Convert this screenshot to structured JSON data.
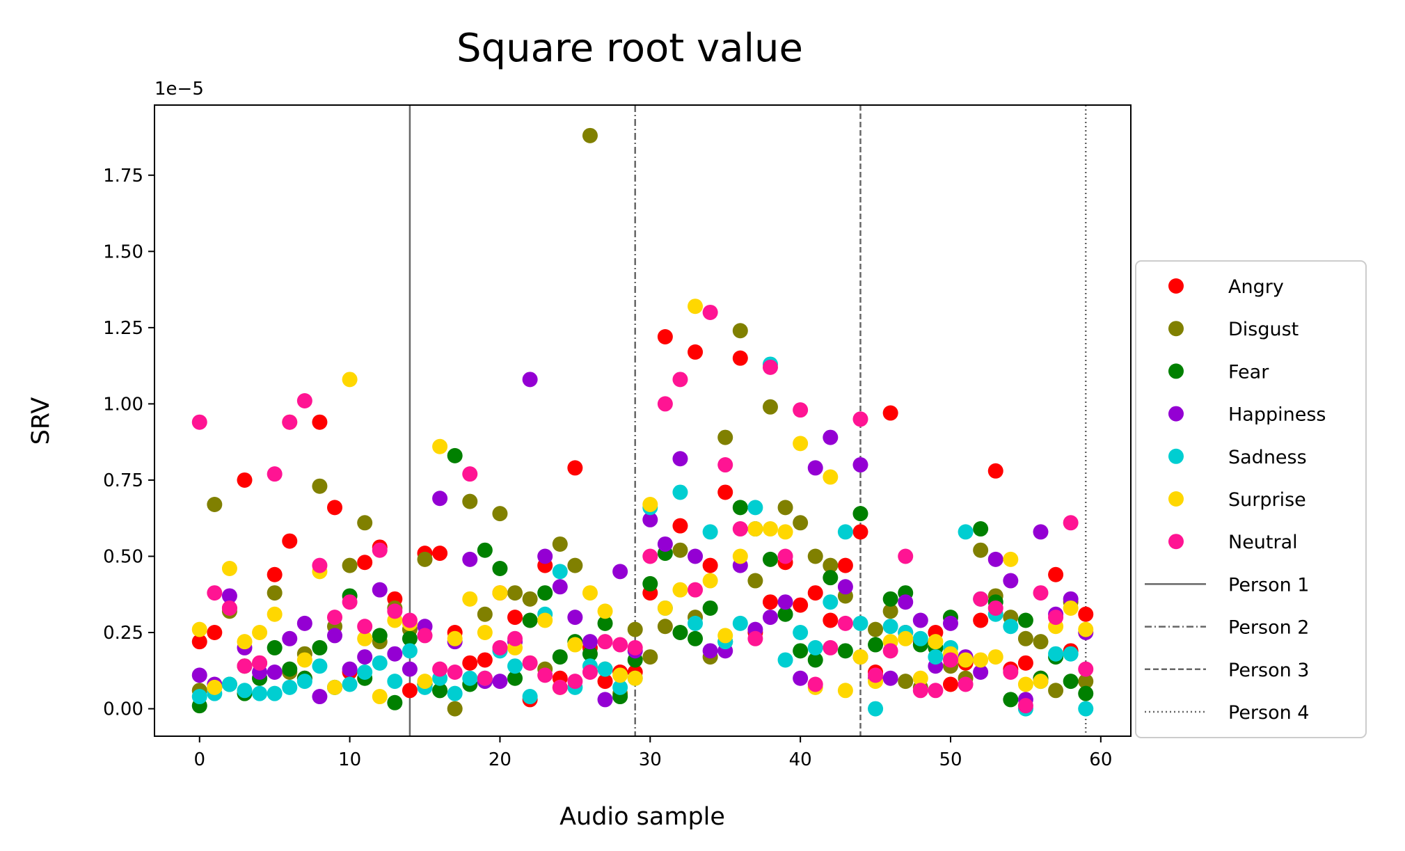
{
  "chart_data": {
    "type": "scatter",
    "title": "Square root value",
    "xlabel": "Audio sample",
    "ylabel": "SRV",
    "y_offset_label": "1e−5",
    "y_multiplier": 1e-05,
    "xlim": [
      -3,
      62
    ],
    "ylim": [
      -0.09,
      1.98
    ],
    "xticks": [
      0,
      10,
      20,
      30,
      40,
      50,
      60
    ],
    "yticks": [
      0.0,
      0.25,
      0.5,
      0.75,
      1.0,
      1.25,
      1.5,
      1.75
    ],
    "ytick_labels": [
      "0.00",
      "0.25",
      "0.50",
      "0.75",
      "1.00",
      "1.25",
      "1.50",
      "1.75"
    ],
    "grid": false,
    "legend_placement": "outside-right",
    "series": [
      {
        "name": "Angry",
        "color": "#ff0000",
        "x": [
          0,
          1,
          2,
          3,
          4,
          5,
          6,
          7,
          8,
          9,
          10,
          11,
          12,
          13,
          14,
          15,
          16,
          17,
          18,
          19,
          20,
          21,
          22,
          23,
          24,
          25,
          26,
          27,
          28,
          29,
          30,
          31,
          32,
          33,
          34,
          35,
          36,
          37,
          38,
          39,
          40,
          41,
          42,
          43,
          44,
          45,
          46,
          47,
          48,
          49,
          50,
          51,
          52,
          53,
          54,
          55,
          56,
          57,
          58,
          59
        ],
        "y": [
          0.22,
          0.25,
          0.33,
          0.75,
          0.15,
          0.44,
          0.55,
          0.1,
          0.94,
          0.66,
          0.12,
          0.48,
          0.53,
          0.36,
          0.06,
          0.51,
          0.51,
          0.25,
          0.15,
          0.16,
          0.38,
          0.3,
          0.03,
          0.47,
          0.1,
          0.79,
          0.2,
          0.09,
          0.12,
          0.12,
          0.38,
          1.22,
          0.6,
          1.17,
          0.47,
          0.71,
          1.15,
          0.25,
          0.35,
          0.48,
          0.34,
          0.38,
          0.29,
          0.47,
          0.58,
          0.12,
          0.97,
          0.25,
          0.22,
          0.25,
          0.08,
          0.15,
          0.29,
          0.78,
          0.13,
          0.15,
          0.1,
          0.44,
          0.19,
          0.31
        ]
      },
      {
        "name": "Disgust",
        "color": "#808000",
        "x": [
          0,
          1,
          2,
          3,
          4,
          5,
          6,
          7,
          8,
          9,
          10,
          11,
          12,
          13,
          14,
          15,
          16,
          17,
          18,
          19,
          20,
          21,
          22,
          23,
          24,
          25,
          26,
          27,
          28,
          29,
          30,
          31,
          32,
          33,
          34,
          35,
          36,
          37,
          38,
          39,
          40,
          41,
          42,
          43,
          44,
          45,
          46,
          47,
          48,
          49,
          50,
          51,
          52,
          53,
          54,
          55,
          56,
          57,
          58,
          59
        ],
        "y": [
          0.06,
          0.67,
          0.32,
          0.14,
          0.1,
          0.38,
          0.12,
          0.18,
          0.73,
          0.27,
          0.47,
          0.61,
          0.22,
          0.33,
          0.26,
          0.49,
          0.06,
          0.0,
          0.68,
          0.31,
          0.64,
          0.38,
          0.36,
          0.13,
          0.54,
          0.47,
          1.88,
          0.13,
          0.05,
          0.26,
          0.17,
          0.27,
          0.52,
          0.3,
          0.17,
          0.89,
          1.24,
          0.42,
          0.99,
          0.66,
          0.61,
          0.5,
          0.47,
          0.37,
          0.17,
          0.26,
          0.32,
          0.09,
          0.07,
          0.2,
          0.14,
          0.1,
          0.52,
          0.37,
          0.3,
          0.23,
          0.22,
          0.06,
          0.35,
          0.09
        ]
      },
      {
        "name": "Fear",
        "color": "#008000",
        "x": [
          0,
          1,
          2,
          3,
          4,
          5,
          6,
          7,
          8,
          9,
          10,
          11,
          12,
          13,
          14,
          15,
          16,
          17,
          18,
          19,
          20,
          21,
          22,
          23,
          24,
          25,
          26,
          27,
          28,
          29,
          30,
          31,
          32,
          33,
          34,
          35,
          36,
          37,
          38,
          39,
          40,
          41,
          42,
          43,
          44,
          45,
          46,
          47,
          48,
          49,
          50,
          51,
          52,
          53,
          54,
          55,
          56,
          57,
          58,
          59
        ],
        "y": [
          0.01,
          0.07,
          0.08,
          0.05,
          0.1,
          0.2,
          0.13,
          0.1,
          0.2,
          0.07,
          0.37,
          0.1,
          0.24,
          0.02,
          0.23,
          0.08,
          0.06,
          0.83,
          0.08,
          0.52,
          0.46,
          0.1,
          0.29,
          0.38,
          0.17,
          0.22,
          0.18,
          0.28,
          0.04,
          0.16,
          0.41,
          0.51,
          0.25,
          0.23,
          0.33,
          0.22,
          0.66,
          0.59,
          0.49,
          0.31,
          0.19,
          0.16,
          0.43,
          0.19,
          0.64,
          0.21,
          0.36,
          0.38,
          0.21,
          0.2,
          0.3,
          0.16,
          0.59,
          0.35,
          0.03,
          0.29,
          0.1,
          0.17,
          0.09,
          0.05
        ]
      },
      {
        "name": "Happiness",
        "color": "#9400d3",
        "x": [
          0,
          1,
          2,
          3,
          4,
          5,
          6,
          7,
          8,
          9,
          10,
          11,
          12,
          13,
          14,
          15,
          16,
          17,
          18,
          19,
          20,
          21,
          22,
          23,
          24,
          25,
          26,
          27,
          28,
          29,
          30,
          31,
          32,
          33,
          34,
          35,
          36,
          37,
          38,
          39,
          40,
          41,
          42,
          43,
          44,
          45,
          46,
          47,
          48,
          49,
          50,
          51,
          52,
          53,
          54,
          55,
          56,
          57,
          58,
          59
        ],
        "y": [
          0.11,
          0.08,
          0.37,
          0.2,
          0.12,
          0.12,
          0.23,
          0.28,
          0.04,
          0.24,
          0.13,
          0.17,
          0.39,
          0.18,
          0.13,
          0.27,
          0.69,
          0.22,
          0.49,
          0.09,
          0.09,
          0.22,
          1.08,
          0.5,
          0.4,
          0.3,
          0.22,
          0.03,
          0.45,
          0.19,
          0.62,
          0.54,
          0.82,
          0.5,
          0.19,
          0.19,
          0.47,
          0.26,
          0.3,
          0.35,
          0.1,
          0.79,
          0.89,
          0.4,
          0.8,
          0.1,
          0.1,
          0.35,
          0.29,
          0.14,
          0.28,
          0.17,
          0.12,
          0.49,
          0.42,
          0.03,
          0.58,
          0.31,
          0.36,
          0.25
        ]
      },
      {
        "name": "Sadness",
        "color": "#00ced1",
        "x": [
          0,
          1,
          2,
          3,
          4,
          5,
          6,
          7,
          8,
          9,
          10,
          11,
          12,
          13,
          14,
          15,
          16,
          17,
          18,
          19,
          20,
          21,
          22,
          23,
          24,
          25,
          26,
          27,
          28,
          29,
          30,
          31,
          32,
          33,
          34,
          35,
          36,
          37,
          38,
          39,
          40,
          41,
          42,
          43,
          44,
          45,
          46,
          47,
          48,
          49,
          50,
          51,
          52,
          53,
          54,
          55,
          56,
          57,
          58,
          59
        ],
        "y": [
          0.04,
          0.05,
          0.08,
          0.06,
          0.05,
          0.05,
          0.07,
          0.09,
          0.14,
          0.07,
          0.08,
          0.12,
          0.15,
          0.09,
          0.19,
          0.07,
          0.1,
          0.05,
          0.1,
          0.1,
          0.19,
          0.14,
          0.04,
          0.31,
          0.45,
          0.07,
          0.14,
          0.13,
          0.07,
          0.1,
          0.66,
          0.33,
          0.71,
          0.28,
          0.58,
          0.22,
          0.28,
          0.66,
          1.13,
          0.16,
          0.25,
          0.2,
          0.35,
          0.58,
          0.28,
          0.0,
          0.27,
          0.25,
          0.23,
          0.17,
          0.2,
          0.58,
          0.36,
          0.31,
          0.27,
          0.0,
          0.09,
          0.18,
          0.18,
          0.0
        ]
      },
      {
        "name": "Surprise",
        "color": "#ffd700",
        "x": [
          0,
          1,
          2,
          3,
          4,
          5,
          6,
          7,
          8,
          9,
          10,
          11,
          12,
          13,
          14,
          15,
          16,
          17,
          18,
          19,
          20,
          21,
          22,
          23,
          24,
          25,
          26,
          27,
          28,
          29,
          30,
          31,
          32,
          33,
          34,
          35,
          36,
          37,
          38,
          39,
          40,
          41,
          42,
          43,
          44,
          45,
          46,
          47,
          48,
          49,
          50,
          51,
          52,
          53,
          54,
          55,
          56,
          57,
          58,
          59
        ],
        "y": [
          0.26,
          0.07,
          0.46,
          0.22,
          0.25,
          0.31,
          0.94,
          0.16,
          0.45,
          0.07,
          1.08,
          0.23,
          0.04,
          0.29,
          0.28,
          0.09,
          0.86,
          0.23,
          0.36,
          0.25,
          0.38,
          0.2,
          0.15,
          0.29,
          0.07,
          0.21,
          0.38,
          0.32,
          0.11,
          0.1,
          0.67,
          0.33,
          0.39,
          1.32,
          0.42,
          0.24,
          0.5,
          0.59,
          0.59,
          0.58,
          0.87,
          0.07,
          0.76,
          0.06,
          0.17,
          0.09,
          0.22,
          0.23,
          0.1,
          0.22,
          0.18,
          0.16,
          0.16,
          0.17,
          0.49,
          0.08,
          0.09,
          0.27,
          0.33,
          0.26
        ]
      },
      {
        "name": "Neutral",
        "color": "#ff1493",
        "x": [
          0,
          1,
          2,
          3,
          4,
          5,
          6,
          7,
          8,
          9,
          10,
          11,
          12,
          13,
          14,
          15,
          16,
          17,
          18,
          19,
          20,
          21,
          22,
          23,
          24,
          25,
          26,
          27,
          28,
          29,
          30,
          31,
          32,
          33,
          34,
          35,
          36,
          37,
          38,
          39,
          40,
          41,
          42,
          43,
          44,
          45,
          46,
          47,
          48,
          49,
          50,
          51,
          52,
          53,
          54,
          55,
          56,
          57,
          58,
          59
        ],
        "y": [
          0.94,
          0.38,
          0.33,
          0.14,
          0.15,
          0.77,
          0.94,
          1.01,
          0.47,
          0.3,
          0.35,
          0.27,
          0.52,
          0.32,
          0.29,
          0.24,
          0.13,
          0.12,
          0.77,
          0.1,
          0.2,
          0.23,
          0.15,
          0.11,
          0.07,
          0.09,
          0.12,
          0.22,
          0.21,
          0.2,
          0.5,
          1.0,
          1.08,
          0.39,
          1.3,
          0.8,
          0.59,
          0.23,
          1.12,
          0.5,
          0.98,
          0.08,
          0.2,
          0.28,
          0.95,
          0.11,
          0.19,
          0.5,
          0.06,
          0.06,
          0.16,
          0.08,
          0.36,
          0.33,
          0.12,
          0.01,
          0.38,
          0.3,
          0.61,
          0.13
        ]
      }
    ],
    "vlines": [
      {
        "name": "Person 1",
        "x": 14,
        "dash": "solid"
      },
      {
        "name": "Person 2",
        "x": 29,
        "dash": "dashdot"
      },
      {
        "name": "Person 3",
        "x": 44,
        "dash": "dashed"
      },
      {
        "name": "Person 4",
        "x": 59,
        "dash": "dotted"
      }
    ],
    "vline_color": "#666666"
  }
}
